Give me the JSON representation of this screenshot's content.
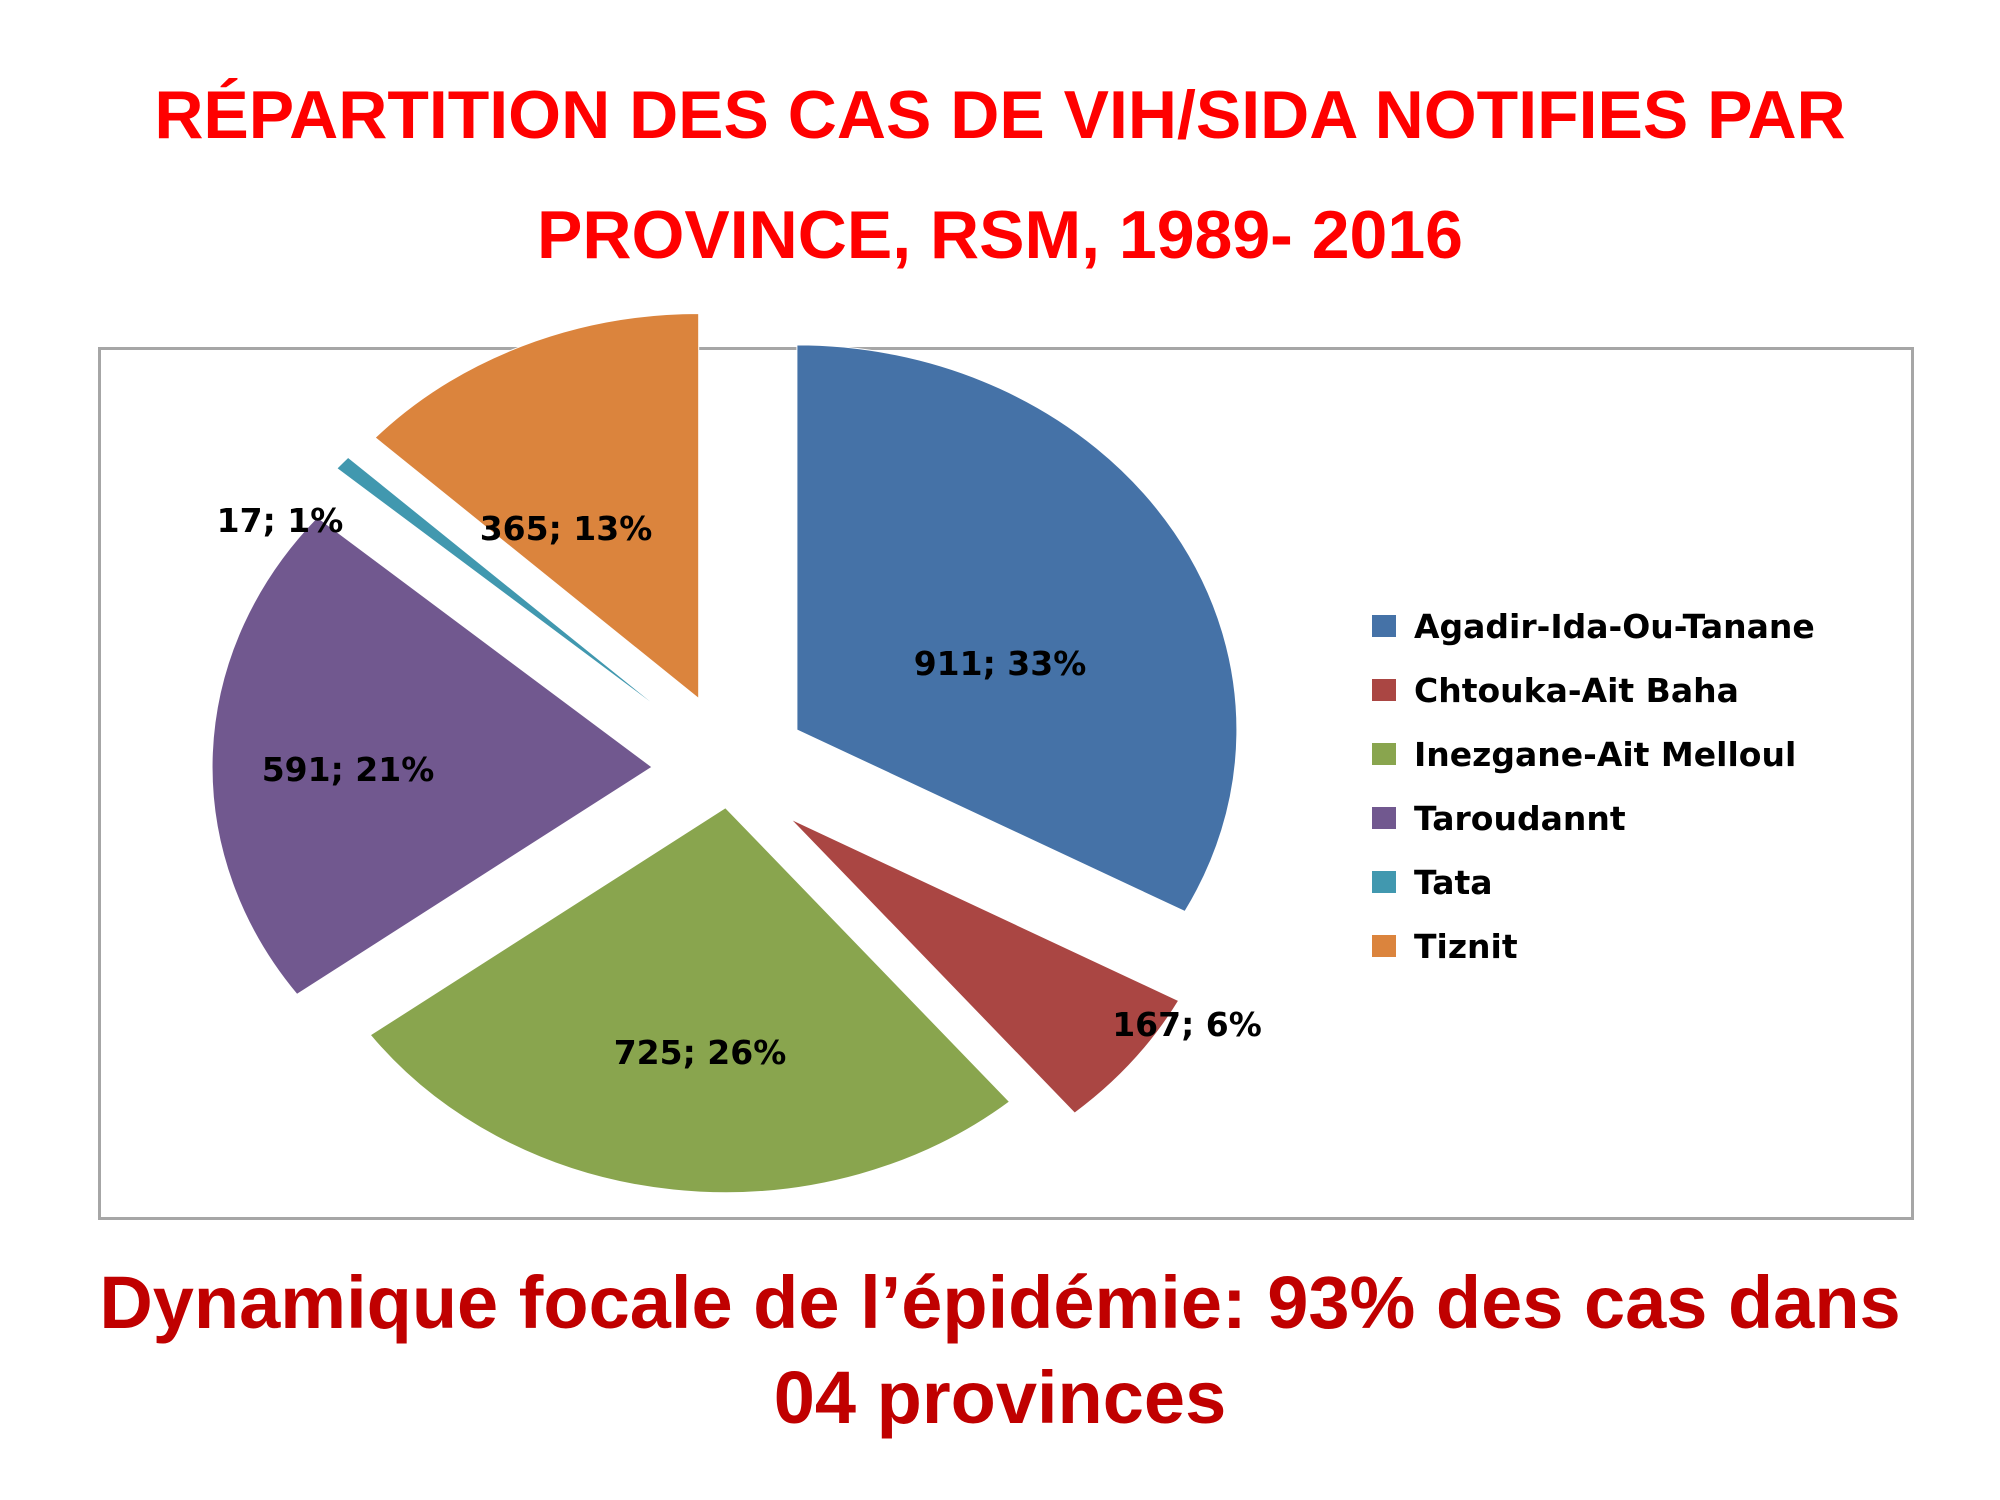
{
  "title": {
    "line1": "RÉPARTITION DES CAS DE VIH/SIDA NOTIFIES PAR",
    "line2": "PROVINCE, RSM, 1989- 2016"
  },
  "caption": {
    "line1": "Dynamique focale de l’épidémie: 93% des cas dans",
    "line2": "04 provinces"
  },
  "chart_data": {
    "type": "pie",
    "categories": [
      "Agadir-Ida-Ou-Tanane",
      "Chtouka-Ait Baha",
      "Inezgane-Ait Melloul",
      "Taroudannt",
      "Tata",
      "Tiznit"
    ],
    "values": [
      911,
      167,
      725,
      591,
      17,
      365
    ],
    "percentages": [
      "33%",
      "6%",
      "26%",
      "21%",
      "1%",
      "13%"
    ],
    "data_labels": [
      "911; 33%",
      "167; 6%",
      "725; 26%",
      "591; 21%",
      "17; 1%",
      "365; 13%"
    ],
    "colors": [
      "#4572a7",
      "#aa4643",
      "#89a54e",
      "#71588f",
      "#4198af",
      "#db843d"
    ],
    "legend": {
      "position": "right",
      "entries": [
        "Agadir-Ida-Ou-Tanane",
        "Chtouka-Ait Baha",
        "Inezgane-Ait Melloul",
        "Taroudannt",
        "Tata",
        "Tiznit"
      ]
    },
    "exploded": true
  }
}
